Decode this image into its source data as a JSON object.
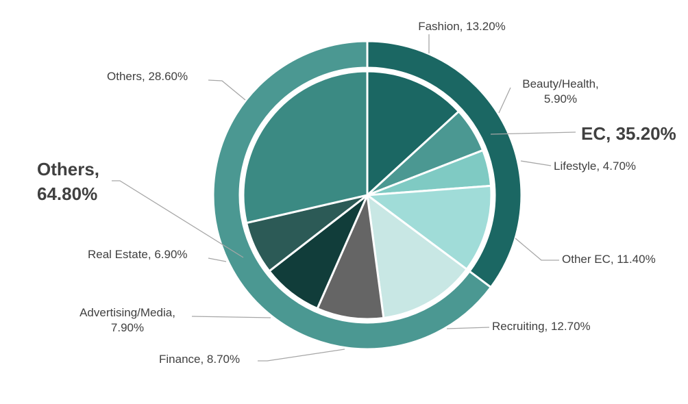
{
  "chart_data": {
    "type": "pie",
    "subtype": "two-level sunburst (inner pie + outer ring)",
    "inner": {
      "categories": [
        "Fashion",
        "Beauty/Health",
        "Lifestyle",
        "Other EC",
        "Recruiting",
        "Finance",
        "Advertising/Media",
        "Real Estate",
        "Others"
      ],
      "values": [
        13.2,
        5.9,
        4.7,
        11.4,
        12.7,
        8.7,
        7.9,
        6.9,
        28.6
      ],
      "labels": [
        "Fashion, 13.20%",
        "Beauty/Health,|5.90%",
        "Lifestyle, 4.70%",
        "Other EC, 11.40%",
        "Recruiting, 12.70%",
        "Finance, 8.70%",
        "Advertising/Media,|7.90%",
        "Real Estate, 6.90%",
        "Others, 28.60%"
      ],
      "colors": [
        "#1b6763",
        "#4b9892",
        "#7fcac3",
        "#a0dcd8",
        "#c8e7e4",
        "#656565",
        "#113d3a",
        "#2c5a56",
        "#3b8a83"
      ]
    },
    "outer": {
      "categories": [
        "EC",
        "Others"
      ],
      "values": [
        35.2,
        64.8
      ],
      "labels": [
        "EC, 35.20%",
        "Others,|64.80%"
      ],
      "colors": [
        "#1b6763",
        "#4b9892"
      ]
    },
    "legend": "none",
    "data_labels": "outside with leader lines"
  }
}
